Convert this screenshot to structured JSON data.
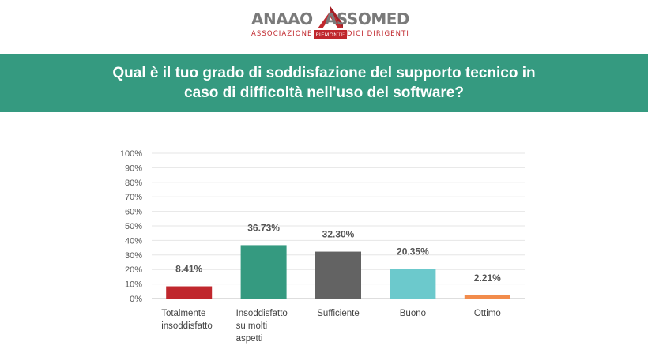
{
  "logo": {
    "word_left": "ANAAO",
    "word_right": "ASSOMED",
    "sub_left": "ASSOCIAZIONE",
    "sub_center": "PIEMONTE",
    "sub_right": "MEDICI DIRIGENTI",
    "text_color": "#7a7a7a",
    "accent_color": "#c0272d"
  },
  "banner": {
    "title": "Qual è il tuo grado di soddisfazione del supporto tecnico in caso di difficoltà nell'uso del software?",
    "background": "#359a80"
  },
  "chart_data": {
    "type": "bar",
    "title": "",
    "xlabel": "",
    "ylabel": "",
    "ylim": [
      0,
      100
    ],
    "y_ticks": [
      "0%",
      "10%",
      "20%",
      "30%",
      "40%",
      "50%",
      "60%",
      "70%",
      "80%",
      "90%",
      "100%"
    ],
    "grid": true,
    "legend": "none",
    "categories": [
      [
        "Totalmente",
        "insoddisfatto"
      ],
      [
        "Insoddisfatto",
        "su molti",
        "aspetti"
      ],
      [
        "Sufficiente"
      ],
      [
        "Buono"
      ],
      [
        "Ottimo"
      ]
    ],
    "values": [
      8.41,
      36.73,
      32.3,
      20.35,
      2.21
    ],
    "value_labels": [
      "8.41%",
      "36.73%",
      "32.30%",
      "20.35%",
      "2.21%"
    ],
    "colors": [
      "#c0272d",
      "#359a80",
      "#636363",
      "#6cc9cc",
      "#f28c4c"
    ]
  }
}
